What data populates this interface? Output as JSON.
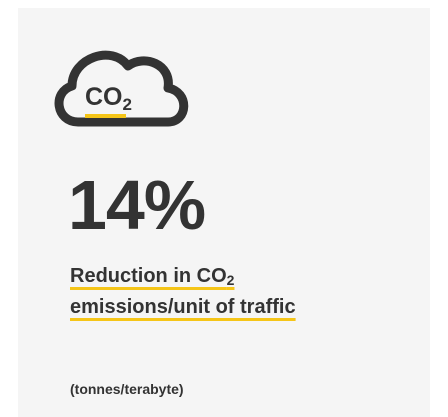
{
  "icon": {
    "label": "CO",
    "subscript": "2"
  },
  "stat": "14%",
  "description": {
    "text": "Reduction in CO",
    "subscript": "2",
    "continuation": "emissions/unit of traffic"
  },
  "unit": "(tonnes/terabyte)"
}
